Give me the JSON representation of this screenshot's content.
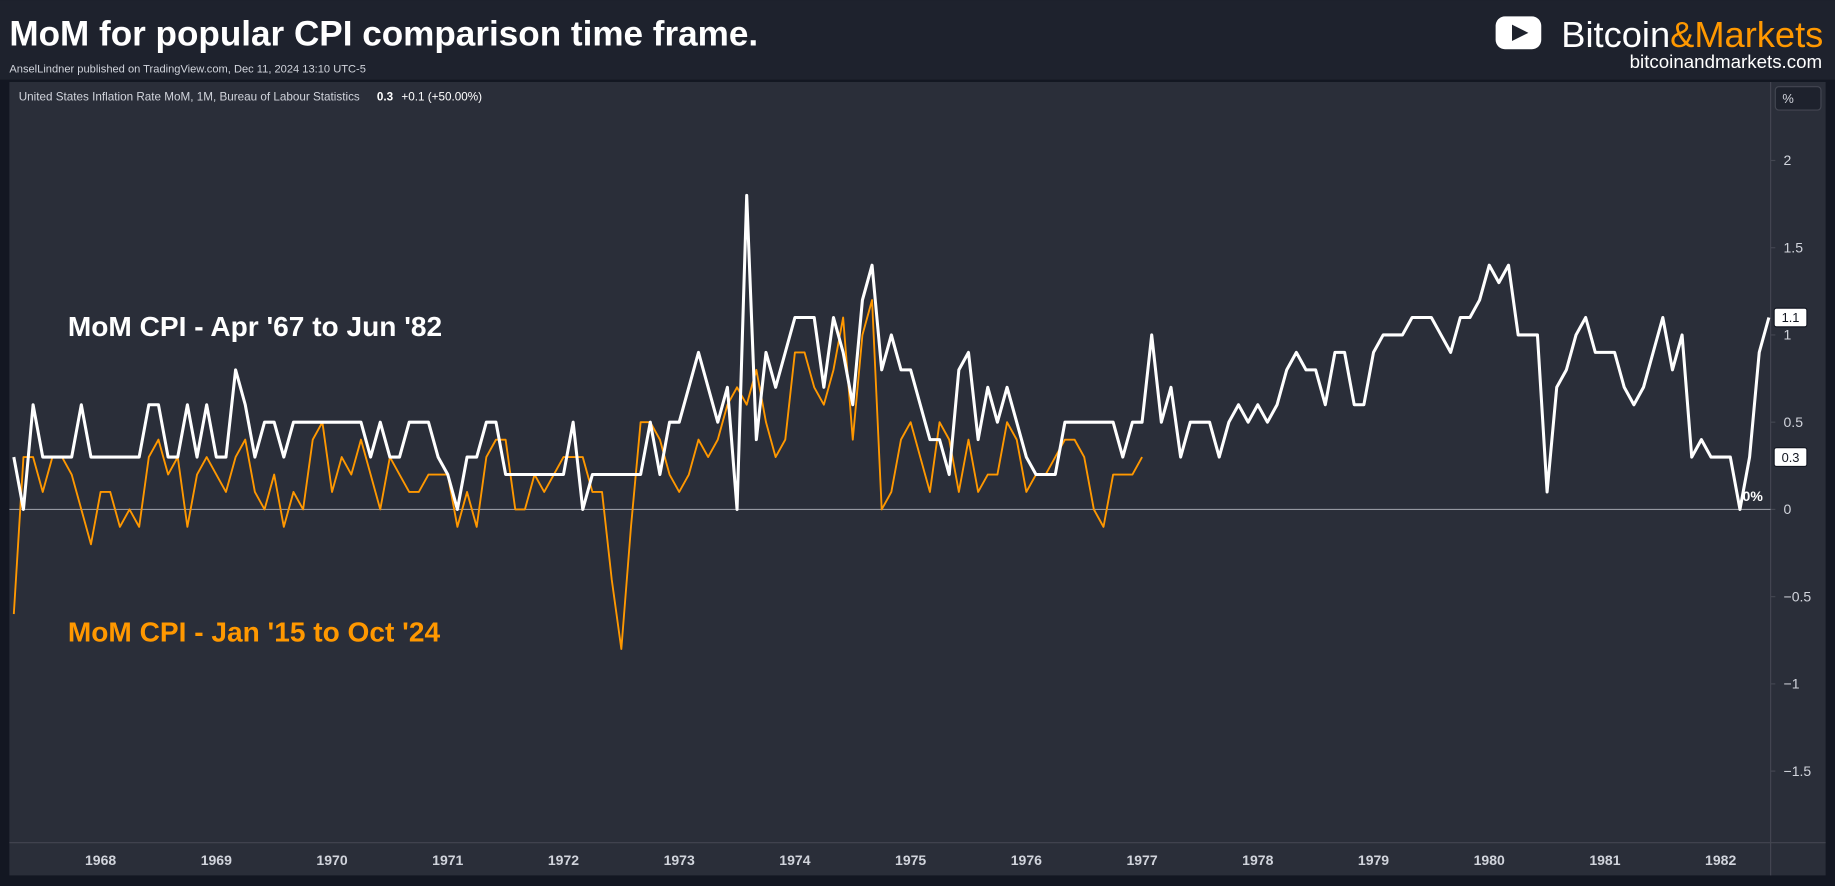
{
  "chart_data": {
    "type": "line",
    "title": "MoM for popular CPI comparison time frame.",
    "byline": "AnselLindner published on TradingView.com, Dec 11, 2024 13:10 UTC-5",
    "legend_header": {
      "symbol": "United States Inflation Rate MoM, 1M, Bureau of Labour Statistics",
      "last": "0.3",
      "change": "+0.1 (+50.00%)"
    },
    "logo": {
      "part1": "Bitcoin",
      "part2": "&Markets",
      "url": "bitcoinandmarkets.com"
    },
    "unit_button": "%",
    "zero_label": "0%",
    "axis_badges": [
      {
        "value": 1.1,
        "label": "1.1"
      },
      {
        "value": 0.3,
        "label": "0.3"
      }
    ],
    "categories": [
      null,
      null,
      null,
      null,
      null,
      null,
      null,
      null,
      null,
      "1968",
      null,
      null,
      null,
      null,
      null,
      null,
      null,
      null,
      null,
      null,
      null,
      "1969",
      null,
      null,
      null,
      null,
      null,
      null,
      null,
      null,
      null,
      null,
      null,
      "1970",
      null,
      null,
      null,
      null,
      null,
      null,
      null,
      null,
      null,
      null,
      null,
      "1971",
      null,
      null,
      null,
      null,
      null,
      null,
      null,
      null,
      null,
      null,
      null,
      "1972",
      null,
      null,
      null,
      null,
      null,
      null,
      null,
      null,
      null,
      null,
      null,
      "1973",
      null,
      null,
      null,
      null,
      null,
      null,
      null,
      null,
      null,
      null,
      null,
      "1974",
      null,
      null,
      null,
      null,
      null,
      null,
      null,
      null,
      null,
      null,
      null,
      "1975",
      null,
      null,
      null,
      null,
      null,
      null,
      null,
      null,
      null,
      null,
      null,
      "1976",
      null,
      null,
      null,
      null,
      null,
      null,
      null,
      null,
      null,
      null,
      null,
      "1977",
      null,
      null,
      null,
      null,
      null,
      null,
      null,
      null,
      null,
      null,
      null,
      "1978",
      null,
      null,
      null,
      null,
      null,
      null,
      null,
      null,
      null,
      null,
      null,
      "1979",
      null,
      null,
      null,
      null,
      null,
      null,
      null,
      null,
      null,
      null,
      null,
      "1980",
      null,
      null,
      null,
      null,
      null,
      null,
      null,
      null,
      null,
      null,
      null,
      "1981",
      null,
      null,
      null,
      null,
      null,
      null,
      null,
      null,
      null,
      null,
      null,
      "1982",
      null,
      null,
      null,
      null,
      null
    ],
    "series": [
      {
        "name": "MoM CPI - Apr '67 to Jun '82",
        "color": "#ffffff",
        "values": [
          0.3,
          0,
          0.6,
          0.3,
          0.3,
          0.3,
          0.3,
          0.6,
          0.3,
          0.3,
          0.3,
          0.3,
          0.3,
          0.3,
          0.6,
          0.6,
          0.3,
          0.3,
          0.6,
          0.3,
          0.6,
          0.3,
          0.3,
          0.8,
          0.6,
          0.3,
          0.5,
          0.5,
          0.3,
          0.5,
          0.5,
          0.5,
          0.5,
          0.5,
          0.5,
          0.5,
          0.5,
          0.3,
          0.5,
          0.3,
          0.3,
          0.5,
          0.5,
          0.5,
          0.3,
          0.2,
          0,
          0.3,
          0.3,
          0.5,
          0.5,
          0.2,
          0.2,
          0.2,
          0.2,
          0.2,
          0.2,
          0.2,
          0.5,
          0,
          0.2,
          0.2,
          0.2,
          0.2,
          0.2,
          0.2,
          0.5,
          0.2,
          0.5,
          0.5,
          0.7,
          0.9,
          0.7,
          0.5,
          0.7,
          0,
          1.8,
          0.4,
          0.9,
          0.7,
          0.9,
          1.1,
          1.1,
          1.1,
          0.7,
          1.1,
          0.9,
          0.6,
          1.2,
          1.4,
          0.8,
          1.0,
          0.8,
          0.8,
          0.6,
          0.4,
          0.4,
          0.2,
          0.8,
          0.9,
          0.4,
          0.7,
          0.5,
          0.7,
          0.5,
          0.3,
          0.2,
          0.2,
          0.2,
          0.5,
          0.5,
          0.5,
          0.5,
          0.5,
          0.5,
          0.3,
          0.5,
          0.5,
          1.0,
          0.5,
          0.7,
          0.3,
          0.5,
          0.5,
          0.5,
          0.3,
          0.5,
          0.6,
          0.5,
          0.6,
          0.5,
          0.6,
          0.8,
          0.9,
          0.8,
          0.8,
          0.6,
          0.9,
          0.9,
          0.6,
          0.6,
          0.9,
          1.0,
          1.0,
          1.0,
          1.1,
          1.1,
          1.1,
          1.0,
          0.9,
          1.1,
          1.1,
          1.2,
          1.4,
          1.3,
          1.4,
          1.0,
          1.0,
          1.0,
          0.1,
          0.7,
          0.8,
          1.0,
          1.1,
          0.9,
          0.9,
          0.9,
          0.7,
          0.6,
          0.7,
          0.9,
          1.1,
          0.8,
          1.0,
          0.3,
          0.4,
          0.3,
          0.3,
          0.3,
          0,
          0.3,
          0.9,
          1.1
        ]
      },
      {
        "name": "MoM CPI - Jan '15 to Oct '24",
        "color": "#ff9800",
        "values": [
          -0.6,
          0.3,
          0.3,
          0.1,
          0.3,
          0.3,
          0.2,
          0,
          -0.2,
          0.1,
          0.1,
          -0.1,
          0,
          -0.1,
          0.3,
          0.4,
          0.2,
          0.3,
          -0.1,
          0.2,
          0.3,
          0.2,
          0.1,
          0.3,
          0.4,
          0.1,
          0,
          0.2,
          -0.1,
          0.1,
          0,
          0.4,
          0.5,
          0.1,
          0.3,
          0.2,
          0.4,
          0.2,
          0,
          0.3,
          0.2,
          0.1,
          0.1,
          0.2,
          0.2,
          0.2,
          -0.1,
          0.1,
          -0.1,
          0.3,
          0.4,
          0.4,
          0,
          0,
          0.2,
          0.1,
          0.2,
          0.3,
          0.3,
          0.3,
          0.1,
          0.1,
          -0.4,
          -0.8,
          -0.1,
          0.5,
          0.5,
          0.4,
          0.2,
          0.1,
          0.2,
          0.4,
          0.3,
          0.4,
          0.6,
          0.7,
          0.6,
          0.8,
          0.5,
          0.3,
          0.4,
          0.9,
          0.9,
          0.7,
          0.6,
          0.8,
          1.1,
          0.4,
          1.0,
          1.2,
          0,
          0.1,
          0.4,
          0.5,
          0.3,
          0.1,
          0.5,
          0.4,
          0.1,
          0.4,
          0.1,
          0.2,
          0.2,
          0.5,
          0.4,
          0.1,
          0.2,
          0.2,
          0.3,
          0.4,
          0.4,
          0.3,
          0,
          -0.1,
          0.2,
          0.2,
          0.2,
          0.3,
          null,
          null,
          null,
          null,
          null,
          null,
          null,
          null,
          null,
          null,
          null,
          null,
          null,
          null,
          null,
          null,
          null,
          null,
          null,
          null,
          null,
          null,
          null,
          null,
          null,
          null,
          null,
          null,
          null,
          null,
          null,
          null,
          null,
          null,
          null,
          null,
          null,
          null,
          null,
          null,
          null,
          null,
          null,
          null,
          null,
          null,
          null,
          null,
          null,
          null,
          null,
          null,
          null,
          null,
          null,
          null,
          null,
          null,
          null,
          null,
          null,
          null,
          null,
          null,
          null
        ]
      }
    ],
    "ylim": [
      -1.91,
      2.45
    ],
    "yticks": [
      {
        "value": -1.5,
        "label": "−1.5"
      },
      {
        "value": -1,
        "label": "−1"
      },
      {
        "value": -0.5,
        "label": "−0.5"
      },
      0,
      0.5,
      1,
      1.5,
      2
    ],
    "grid": false,
    "zero_line": true
  }
}
